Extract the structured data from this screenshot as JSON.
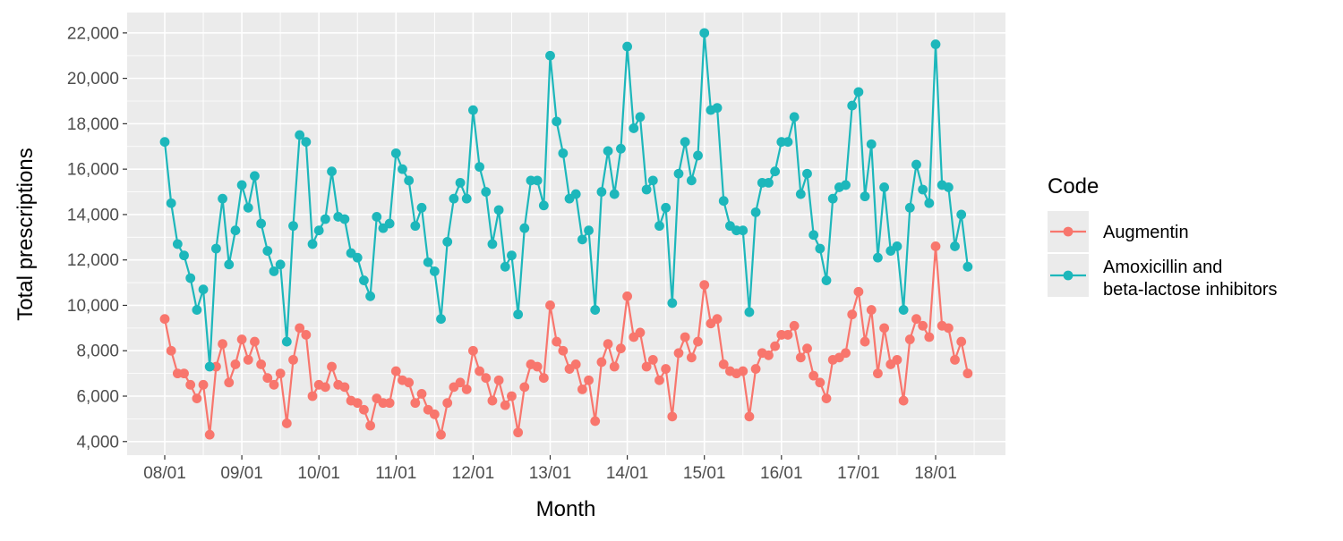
{
  "chart_data": {
    "type": "line",
    "xlabel": "Month",
    "ylabel": "Total prescriptions",
    "ylim": [
      3400,
      22900
    ],
    "yticks": [
      4000,
      6000,
      8000,
      10000,
      12000,
      14000,
      16000,
      18000,
      20000,
      22000
    ],
    "ytick_labels": [
      "4,000",
      "6,000",
      "8,000",
      "10,000",
      "12,000",
      "14,000",
      "16,000",
      "18,000",
      "20,000",
      "22,000"
    ],
    "xtick_labels": [
      "08/01",
      "09/01",
      "10/01",
      "11/01",
      "12/01",
      "13/01",
      "14/01",
      "15/01",
      "16/01",
      "17/01",
      "18/01"
    ],
    "x_start": "2008-01",
    "grid": true,
    "legend": {
      "title": "Code",
      "position": "right",
      "entries": [
        "Augmentin",
        "Amoxicillin and beta-lactose inhibitors"
      ]
    },
    "series": [
      {
        "name": "Augmentin",
        "color": "#F8766D",
        "values": [
          9400,
          8000,
          7000,
          7000,
          6500,
          5900,
          6500,
          4300,
          7300,
          8300,
          6600,
          7400,
          8500,
          7600,
          8400,
          7400,
          6800,
          6500,
          7000,
          4800,
          7600,
          9000,
          8700,
          6000,
          6500,
          6400,
          7300,
          6500,
          6400,
          5800,
          5700,
          5400,
          4700,
          5900,
          5700,
          5700,
          7100,
          6700,
          6600,
          5700,
          6100,
          5400,
          5200,
          4300,
          5700,
          6400,
          6600,
          6300,
          8000,
          7100,
          6800,
          5800,
          6700,
          5600,
          6000,
          4400,
          6400,
          7400,
          7300,
          6800,
          10000,
          8400,
          8000,
          7200,
          7400,
          6300,
          6700,
          4900,
          7500,
          8300,
          7300,
          8100,
          10400,
          8600,
          8800,
          7300,
          7600,
          6700,
          7200,
          5100,
          7900,
          8600,
          7700,
          8400,
          10900,
          9200,
          9400,
          7400,
          7100,
          7000,
          7100,
          5100,
          7200,
          7900,
          7800,
          8200,
          8700,
          8700,
          9100,
          7700,
          8100,
          6900,
          6600,
          5900,
          7600,
          7700,
          7900,
          9600,
          10600,
          8400,
          9800,
          7000,
          9000,
          7400,
          7600,
          5800,
          8500,
          9400,
          9100,
          8600,
          12600,
          9100,
          9000,
          7600,
          8400,
          7000
        ]
      },
      {
        "name": "Amoxicillin and beta-lactose inhibitors",
        "color": "#1DB7BB",
        "values": [
          17200,
          14500,
          12700,
          12200,
          11200,
          9800,
          10700,
          7300,
          12500,
          14700,
          11800,
          13300,
          15300,
          14300,
          15700,
          13600,
          12400,
          11500,
          11800,
          8400,
          13500,
          17500,
          17200,
          12700,
          13300,
          13800,
          15900,
          13900,
          13800,
          12300,
          12100,
          11100,
          10400,
          13900,
          13400,
          13600,
          16700,
          16000,
          15500,
          13500,
          14300,
          11900,
          11500,
          9400,
          12800,
          14700,
          15400,
          14700,
          18600,
          16100,
          15000,
          12700,
          14200,
          11700,
          12200,
          9600,
          13400,
          15500,
          15500,
          14400,
          21000,
          18100,
          16700,
          14700,
          14900,
          12900,
          13300,
          9800,
          15000,
          16800,
          14900,
          16900,
          21400,
          17800,
          18300,
          15100,
          15500,
          13500,
          14300,
          10100,
          15800,
          17200,
          15500,
          16600,
          22000,
          18600,
          18700,
          14600,
          13500,
          13300,
          13300,
          9700,
          14100,
          15400,
          15400,
          15900,
          17200,
          17200,
          18300,
          14900,
          15800,
          13100,
          12500,
          11100,
          14700,
          15200,
          15300,
          18800,
          19400,
          14800,
          17100,
          12100,
          15200,
          12400,
          12600,
          9800,
          14300,
          16200,
          15100,
          14500,
          21500,
          15300,
          15200,
          12600,
          14000,
          11700
        ]
      }
    ]
  }
}
